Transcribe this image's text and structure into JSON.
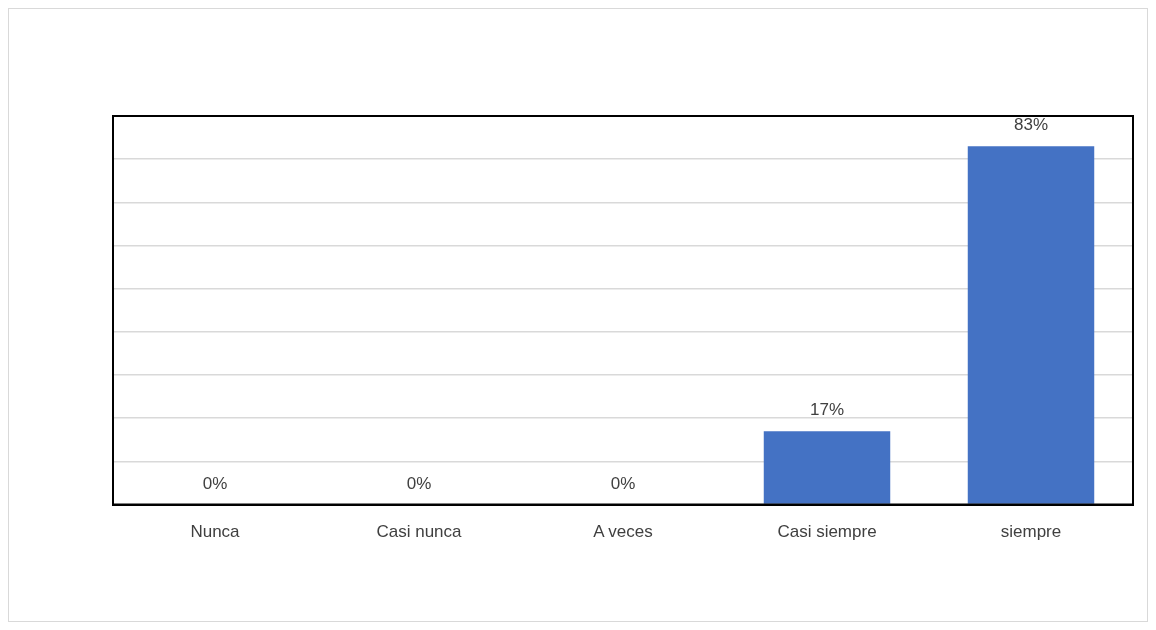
{
  "chart_data": {
    "type": "bar",
    "categories": [
      "Nunca",
      "Casi nunca",
      "A veces",
      "Casi siempre",
      "siempre"
    ],
    "values": [
      0,
      0,
      0,
      17,
      83
    ],
    "value_labels": [
      "0%",
      "0%",
      "0%",
      "17%",
      "83%"
    ],
    "color": "#4472c4",
    "ylim": [
      0,
      90
    ],
    "yticks": [
      0,
      10,
      20,
      30,
      40,
      50,
      60,
      70,
      80,
      90
    ],
    "grid": "y",
    "legend": false,
    "tick_labels": "x"
  }
}
